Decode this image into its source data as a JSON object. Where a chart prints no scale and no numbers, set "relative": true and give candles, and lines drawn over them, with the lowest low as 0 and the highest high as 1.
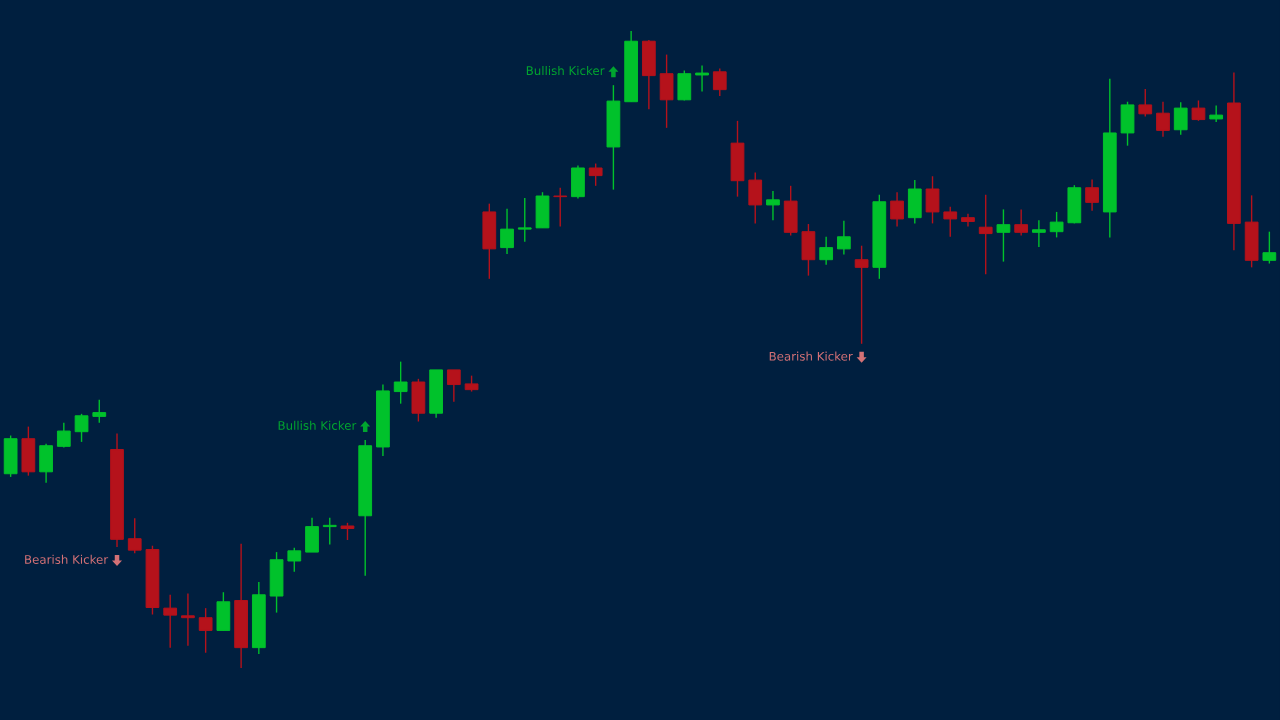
{
  "chart_data": {
    "type": "candlestick",
    "relative": true,
    "categories": [
      null,
      null,
      null,
      null,
      null,
      null,
      null,
      null,
      null,
      null,
      null,
      null,
      null,
      null,
      null,
      null,
      null,
      null,
      null,
      null,
      null,
      null,
      null,
      null,
      null,
      null,
      null,
      null,
      null,
      null,
      null,
      null,
      null,
      null,
      null,
      null,
      null,
      null,
      null,
      null,
      null,
      null,
      null,
      null,
      null,
      null,
      null,
      null,
      null,
      null,
      null,
      null,
      null,
      null,
      null,
      null,
      null,
      null,
      null,
      null,
      null,
      null,
      null,
      null,
      null,
      null,
      null,
      null,
      null,
      null,
      null,
      null
    ],
    "ohlc": [
      [
        0.305,
        0.365,
        0.3,
        0.36
      ],
      [
        0.36,
        0.379,
        0.302,
        0.308
      ],
      [
        0.308,
        0.352,
        0.291,
        0.349
      ],
      [
        0.348,
        0.385,
        0.346,
        0.372
      ],
      [
        0.371,
        0.399,
        0.355,
        0.396
      ],
      [
        0.395,
        0.421,
        0.385,
        0.401
      ],
      [
        0.343,
        0.368,
        0.19,
        0.202
      ],
      [
        0.203,
        0.235,
        0.18,
        0.185
      ],
      [
        0.186,
        0.192,
        0.084,
        0.095
      ],
      [
        0.094,
        0.115,
        0.032,
        0.083
      ],
      [
        0.082,
        0.117,
        0.035,
        0.079
      ],
      [
        0.079,
        0.094,
        0.024,
        0.059
      ],
      [
        0.059,
        0.119,
        0.059,
        0.104
      ],
      [
        0.106,
        0.195,
        0.0,
        0.032
      ],
      [
        0.032,
        0.135,
        0.022,
        0.115
      ],
      [
        0.113,
        0.182,
        0.087,
        0.17
      ],
      [
        0.168,
        0.189,
        0.151,
        0.184
      ],
      [
        0.182,
        0.236,
        0.182,
        0.222
      ],
      [
        0.222,
        0.236,
        0.194,
        0.224
      ],
      [
        0.223,
        0.228,
        0.201,
        0.219
      ],
      [
        0.239,
        0.358,
        0.145,
        0.349
      ],
      [
        0.347,
        0.445,
        0.333,
        0.435
      ],
      [
        0.434,
        0.481,
        0.415,
        0.449
      ],
      [
        0.449,
        0.454,
        0.387,
        0.4
      ],
      [
        0.4,
        0.468,
        0.393,
        0.468
      ],
      [
        0.468,
        0.468,
        0.418,
        0.445
      ],
      [
        0.446,
        0.459,
        0.434,
        0.437
      ],
      [
        0.716,
        0.729,
        0.611,
        0.658
      ],
      [
        0.66,
        0.721,
        0.65,
        0.689
      ],
      [
        0.689,
        0.738,
        0.669,
        0.691
      ],
      [
        0.691,
        0.747,
        0.691,
        0.741
      ],
      [
        0.741,
        0.754,
        0.693,
        0.74
      ],
      [
        0.74,
        0.789,
        0.737,
        0.785
      ],
      [
        0.785,
        0.792,
        0.757,
        0.773
      ],
      [
        0.818,
        0.915,
        0.751,
        0.89
      ],
      [
        0.889,
        1.0,
        0.889,
        0.984
      ],
      [
        0.984,
        0.986,
        0.877,
        0.93
      ],
      [
        0.933,
        0.963,
        0.848,
        0.892
      ],
      [
        0.892,
        0.938,
        0.891,
        0.933
      ],
      [
        0.931,
        0.946,
        0.905,
        0.934
      ],
      [
        0.936,
        0.941,
        0.898,
        0.908
      ],
      [
        0.824,
        0.859,
        0.74,
        0.765
      ],
      [
        0.766,
        0.778,
        0.698,
        0.727
      ],
      [
        0.727,
        0.749,
        0.703,
        0.735
      ],
      [
        0.733,
        0.757,
        0.679,
        0.684
      ],
      [
        0.685,
        0.697,
        0.616,
        0.641
      ],
      [
        0.641,
        0.677,
        0.633,
        0.66
      ],
      [
        0.658,
        0.702,
        0.649,
        0.677
      ],
      [
        0.641,
        0.663,
        0.509,
        0.629
      ],
      [
        0.629,
        0.743,
        0.611,
        0.732
      ],
      [
        0.733,
        0.747,
        0.693,
        0.705
      ],
      [
        0.707,
        0.766,
        0.698,
        0.752
      ],
      [
        0.752,
        0.772,
        0.698,
        0.716
      ],
      [
        0.716,
        0.724,
        0.677,
        0.705
      ],
      [
        0.707,
        0.713,
        0.693,
        0.701
      ],
      [
        0.692,
        0.743,
        0.618,
        0.682
      ],
      [
        0.684,
        0.72,
        0.638,
        0.696
      ],
      [
        0.696,
        0.72,
        0.679,
        0.684
      ],
      [
        0.684,
        0.703,
        0.661,
        0.688
      ],
      [
        0.685,
        0.716,
        0.676,
        0.7
      ],
      [
        0.699,
        0.758,
        0.698,
        0.754
      ],
      [
        0.754,
        0.767,
        0.718,
        0.731
      ],
      [
        0.716,
        0.925,
        0.676,
        0.84
      ],
      [
        0.84,
        0.889,
        0.82,
        0.884
      ],
      [
        0.884,
        0.909,
        0.866,
        0.87
      ],
      [
        0.871,
        0.889,
        0.834,
        0.844
      ],
      [
        0.845,
        0.888,
        0.837,
        0.879
      ],
      [
        0.879,
        0.891,
        0.859,
        0.861
      ],
      [
        0.862,
        0.883,
        0.857,
        0.868
      ],
      [
        0.887,
        0.935,
        0.656,
        0.698
      ],
      [
        0.7,
        0.742,
        0.629,
        0.64
      ],
      [
        0.64,
        0.685,
        0.635,
        0.652
      ]
    ],
    "colors": [
      "#00c22b",
      "#b5121b",
      "#00c22b",
      "#00c22b",
      "#00c22b",
      "#00c22b",
      "#b5121b",
      "#b5121b",
      "#b5121b",
      "#b5121b",
      "#b5121b",
      "#b5121b",
      "#00c22b",
      "#b5121b",
      "#00c22b",
      "#00c22b",
      "#00c22b",
      "#00c22b",
      "#00c22b",
      "#b5121b",
      "#00c22b",
      "#00c22b",
      "#00c22b",
      "#b5121b",
      "#00c22b",
      "#b5121b",
      "#b5121b",
      "#b5121b",
      "#00c22b",
      "#00c22b",
      "#00c22b",
      "#b5121b",
      "#00c22b",
      "#b5121b",
      "#00c22b",
      "#00c22b",
      "#b5121b",
      "#b5121b",
      "#00c22b",
      "#00c22b",
      "#b5121b",
      "#b5121b",
      "#b5121b",
      "#00c22b",
      "#b5121b",
      "#b5121b",
      "#00c22b",
      "#00c22b",
      "#b5121b",
      "#00c22b",
      "#b5121b",
      "#00c22b",
      "#b5121b",
      "#b5121b",
      "#b5121b",
      "#b5121b",
      "#00c22b",
      "#b5121b",
      "#00c22b",
      "#00c22b",
      "#00c22b",
      "#b5121b",
      "#00c22b",
      "#00c22b",
      "#b5121b",
      "#b5121b",
      "#00c22b",
      "#b5121b",
      "#00c22b",
      "#b5121b",
      "#b5121b",
      "#00c22b"
    ],
    "annotations": [
      "Bearish Kicker",
      "Bullish Kicker",
      "Bullish Kicker",
      "Bearish Kicker"
    ]
  }
}
